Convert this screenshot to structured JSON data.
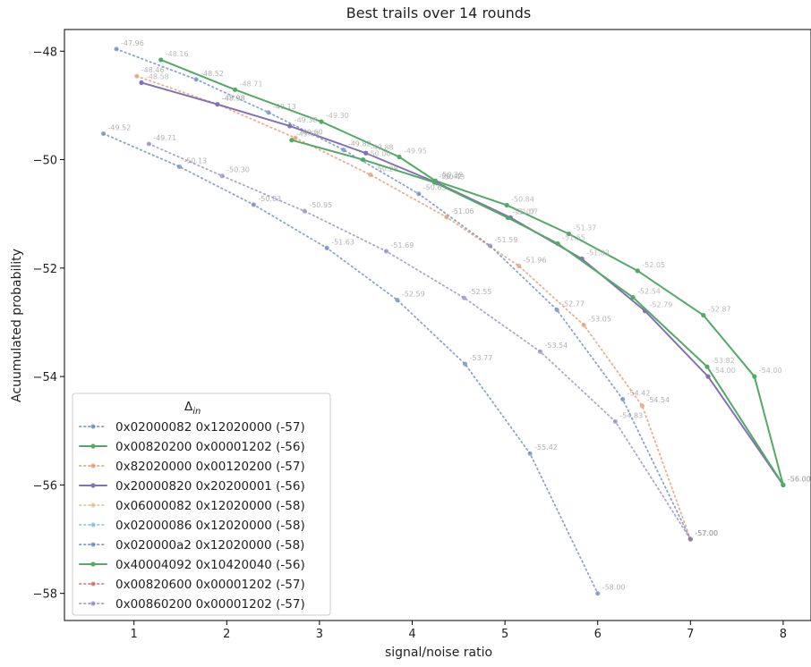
{
  "chart_data": {
    "type": "line",
    "title": "Best trails over 14 rounds",
    "xlabel": "signal/noise ratio",
    "ylabel": "Acuumulated probability",
    "xlim": [
      0.25,
      8.3
    ],
    "ylim": [
      -58.5,
      -47.6
    ],
    "xticks": [
      1,
      2,
      3,
      4,
      5,
      6,
      7,
      8
    ],
    "yticks": [
      -48,
      -50,
      -52,
      -54,
      -56,
      -58
    ],
    "xtick_labels": [
      "1",
      "2",
      "3",
      "4",
      "5",
      "6",
      "7",
      "8"
    ],
    "ytick_labels": [
      "−48",
      "−50",
      "−52",
      "−54",
      "−56",
      "−58"
    ],
    "grid": false,
    "legend_position": "lower-left",
    "legend_title": "Δin",
    "series": [
      {
        "name": "0x02000082 0x12020000 (-57)",
        "color": "#4c72b0",
        "style": "dotted",
        "x": [
          0.81,
          1.67,
          2.45,
          3.26,
          4.07,
          4.84,
          5.56,
          6.27,
          7.0
        ],
        "y": [
          -47.96,
          -48.52,
          -49.13,
          -49.82,
          -50.63,
          -51.59,
          -52.77,
          -54.42,
          -57.0
        ],
        "labels": [
          "-47.96",
          "-48.52",
          "-49.13",
          "-49.82",
          "-50.63",
          "-51.59",
          "-52.77",
          "-54.42",
          "-57.00"
        ]
      },
      {
        "name": "0x00820200 0x00001202 (-56)",
        "color": "#55a868",
        "style": "solid",
        "x": [
          1.29,
          2.09,
          3.02,
          3.86,
          4.25,
          5.02,
          5.69,
          6.43,
          7.14,
          7.69,
          8.0
        ],
        "y": [
          -48.16,
          -48.71,
          -49.3,
          -49.95,
          -50.39,
          -50.84,
          -51.37,
          -52.05,
          -52.87,
          -54.0,
          -56.0
        ],
        "labels": [
          "-48.16",
          "-48.71",
          "-49.30",
          "-49.95",
          "-50.39",
          "-50.84",
          "-51.37",
          "-52.05",
          "-52.87",
          "-54.00",
          "-56.00"
        ]
      },
      {
        "name": "0x82020000 0x00120200 (-57)",
        "color": "#dd8452",
        "style": "dotted",
        "x": [
          1.03,
          1.9,
          2.74,
          3.55,
          4.37,
          5.15,
          5.85,
          6.48,
          7.0
        ],
        "y": [
          -48.46,
          -48.98,
          -49.6,
          -50.28,
          -51.06,
          -51.96,
          -53.05,
          -54.54,
          -57.0
        ],
        "labels": [
          "-48.46",
          "-48.98",
          "-49.60",
          "-50.28",
          "-51.06",
          "-51.96",
          "-53.05",
          "-54.54",
          "-57.00"
        ]
      },
      {
        "name": "0x20000820 0x20200001 (-56)",
        "color": "#8172b3",
        "style": "solid",
        "x": [
          1.08,
          1.9,
          2.68,
          3.5,
          4.27,
          5.06,
          5.83,
          6.51,
          7.19,
          8.0
        ],
        "y": [
          -48.58,
          -48.98,
          -49.38,
          -49.88,
          -50.43,
          -51.07,
          -51.83,
          -52.79,
          -54.0,
          -56.0
        ],
        "labels": [
          "-48.58",
          "-48.98",
          "-49.38",
          "-49.88",
          "-50.43",
          "-51.07",
          "-51.83",
          "-52.79",
          "-54.00",
          "-56.00"
        ]
      },
      {
        "name": "0x06000082 0x12020000 (-58)",
        "color": "#ccb974",
        "style": "dotted",
        "x": [],
        "y": [],
        "labels": []
      },
      {
        "name": "0x02000086 0x12020000 (-58)",
        "color": "#64b5cd",
        "style": "dotted",
        "x": [],
        "y": [],
        "labels": []
      },
      {
        "name": "0x020000a2 0x12020000 (-58)",
        "color": "#4c72b0",
        "style": "dotted",
        "x": [
          0.67,
          1.49,
          2.29,
          3.08,
          3.84,
          4.57,
          5.27,
          6.0
        ],
        "y": [
          -49.52,
          -50.13,
          -50.83,
          -51.63,
          -52.59,
          -53.77,
          -55.42,
          -58.0
        ],
        "labels": [
          "-49.52",
          "-50.13",
          "-50.83",
          "-51.63",
          "-52.59",
          "-53.77",
          "-55.42",
          "-58.00"
        ]
      },
      {
        "name": "0x40004092 0x10420040 (-56)",
        "color": "#55a868",
        "style": "solid",
        "x": [
          2.7,
          3.47,
          4.24,
          5.03,
          5.57,
          6.38,
          7.18,
          8.0
        ],
        "y": [
          -49.64,
          -50.0,
          -50.42,
          -51.07,
          -51.55,
          -52.54,
          -53.82,
          -56.0
        ],
        "labels": [
          "-49.64",
          "-50.00",
          "-50.42",
          "-51.07",
          "-51.55",
          "-52.54",
          "-53.82",
          "-56.00"
        ]
      },
      {
        "name": "0x00820600 0x00001202 (-57)",
        "color": "#c44e52",
        "style": "dotted",
        "x": [],
        "y": [],
        "labels": []
      },
      {
        "name": "0x00860200 0x00001202 (-57)",
        "color": "#8172b3",
        "style": "dotted",
        "x": [
          1.16,
          1.95,
          2.84,
          3.72,
          4.56,
          5.38,
          6.19,
          7.0
        ],
        "y": [
          -49.71,
          -50.3,
          -50.95,
          -51.69,
          -52.55,
          -53.54,
          -54.83,
          -57.0
        ],
        "labels": [
          "-49.71",
          "-50.30",
          "-50.95",
          "-51.69",
          "-52.55",
          "-53.54",
          "-54.83",
          "-57.00"
        ]
      }
    ]
  }
}
